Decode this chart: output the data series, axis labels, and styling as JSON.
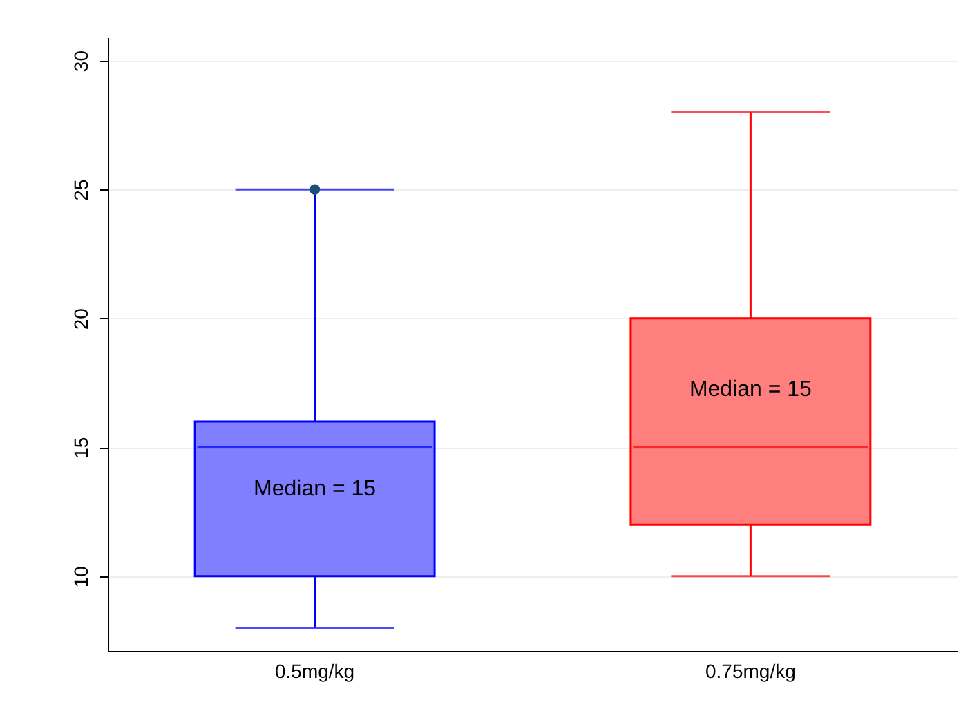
{
  "chart_data": {
    "type": "box",
    "categories": [
      "0.5mg/kg",
      "0.75mg/kg"
    ],
    "boxes": [
      {
        "low": 8,
        "q1": 10,
        "median": 15,
        "q3": 16,
        "high": 25
      },
      {
        "low": 10,
        "q1": 12,
        "median": 15,
        "q3": 20,
        "high": 28
      }
    ],
    "colors": [
      "#0000ff",
      "#ff0000"
    ],
    "series": [
      {
        "type": "scatter",
        "x": [
          "0.5mg/kg"
        ],
        "values": [
          25
        ],
        "color": "#1f4e79"
      }
    ],
    "ylim": [
      7.1,
      30.9
    ],
    "yticks": [
      10,
      15,
      20,
      25,
      30
    ],
    "grid": "y",
    "annotations": [
      "Median = 15",
      "Median = 15"
    ]
  }
}
